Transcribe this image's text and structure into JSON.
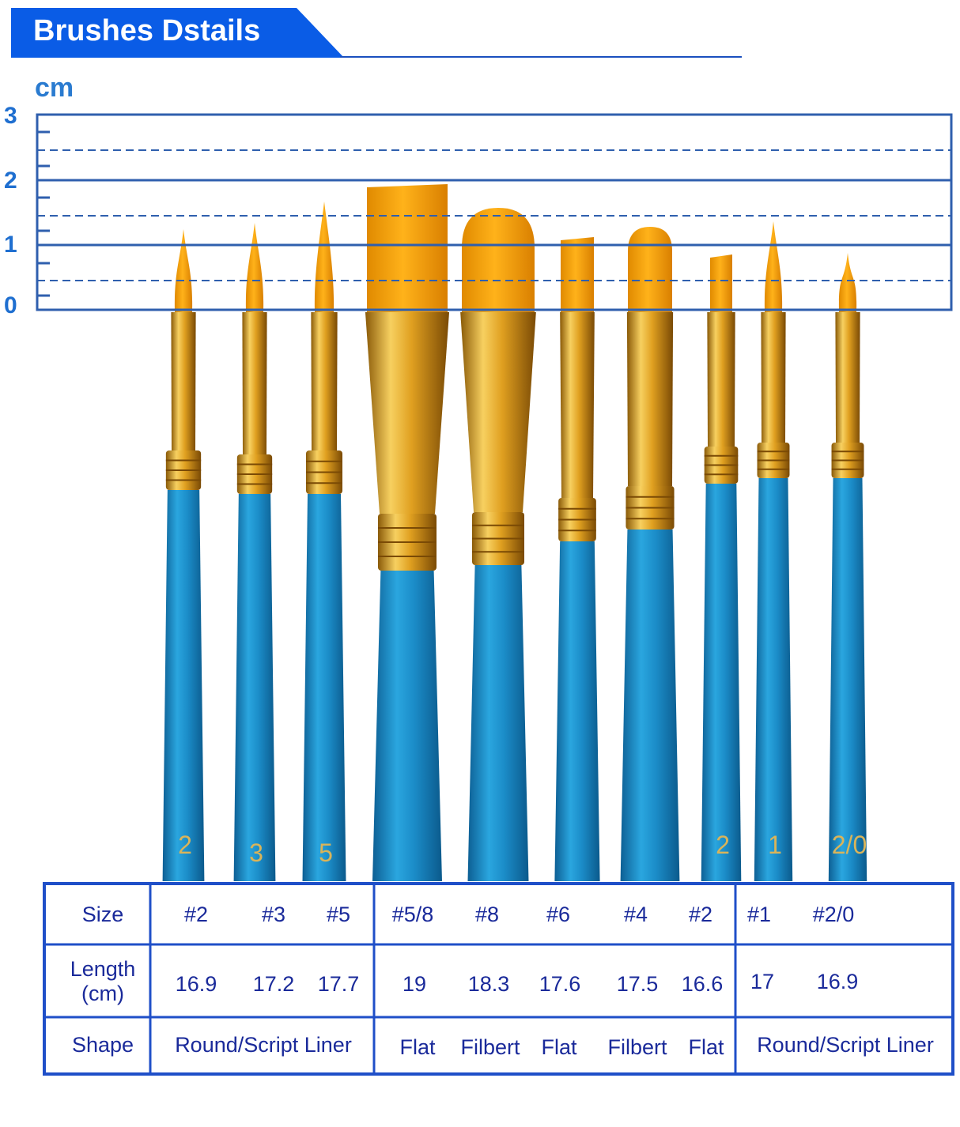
{
  "header": {
    "title": "Brushes Dstails"
  },
  "ruler": {
    "unit": "cm",
    "ticks": [
      "3",
      "2",
      "1",
      "0"
    ]
  },
  "colors": {
    "accent": "#0a5ce6",
    "ruler_line": "#2f5fae",
    "table_border": "#1f4fc8",
    "table_text": "#1a2a9a",
    "handle": "#1b8cc8",
    "bristle": "#f5a000",
    "ferrule": "#e0a020"
  },
  "brushes": [
    {
      "shape": "round",
      "handle_number": "2"
    },
    {
      "shape": "round",
      "handle_number": "3"
    },
    {
      "shape": "round",
      "handle_number": "5"
    },
    {
      "shape": "flat",
      "handle_number": ""
    },
    {
      "shape": "filbert",
      "handle_number": ""
    },
    {
      "shape": "flat",
      "handle_number": ""
    },
    {
      "shape": "filbert",
      "handle_number": ""
    },
    {
      "shape": "flat",
      "handle_number": "2"
    },
    {
      "shape": "round",
      "handle_number": "1"
    },
    {
      "shape": "round",
      "handle_number": "2/0"
    }
  ],
  "table": {
    "size": {
      "label": "Size",
      "values": [
        "#2",
        "#3",
        "#5",
        "#5/8",
        "#8",
        "#6",
        "#4",
        "#2",
        "#1",
        "#2/0"
      ]
    },
    "length": {
      "label": "Length\n(cm)",
      "values": [
        "16.9",
        "17.2",
        "17.7",
        "19",
        "18.3",
        "17.6",
        "17.5",
        "16.6",
        "17",
        "16.9"
      ]
    },
    "shape": {
      "label": "Shape",
      "values": [
        "Round/Script Liner",
        "Flat",
        "Filbert",
        "Flat",
        "Filbert",
        "Flat",
        "Round/Script Liner"
      ]
    }
  }
}
